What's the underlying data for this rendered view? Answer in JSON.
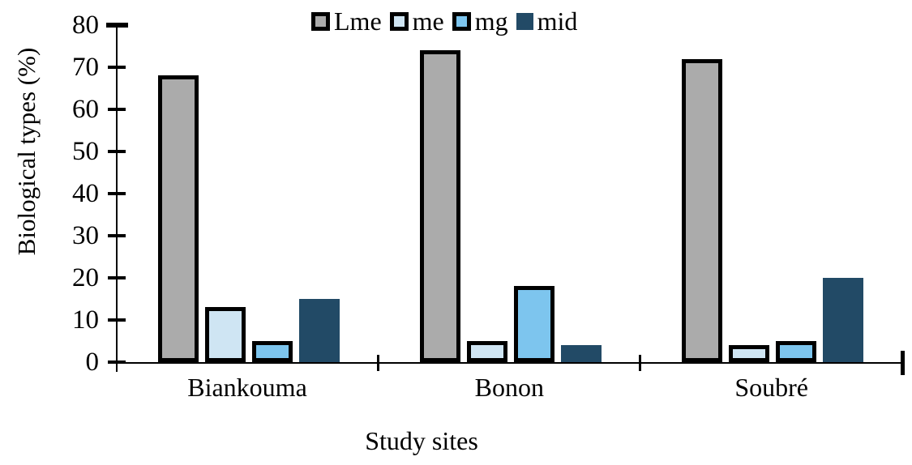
{
  "chart_data": {
    "type": "bar",
    "title": "",
    "categories": [
      "Biankouma",
      "Bonon",
      "Soubré"
    ],
    "series": [
      {
        "name": "Lme",
        "fill": "#ababab",
        "border": "#000000",
        "values": [
          68,
          74,
          72
        ]
      },
      {
        "name": "me",
        "fill": "#cfe5f3",
        "border": "#000000",
        "values": [
          13,
          5,
          4
        ]
      },
      {
        "name": "mg",
        "fill": "#7dc5ee",
        "border": "#000000",
        "values": [
          5,
          18,
          5
        ]
      },
      {
        "name": "mid",
        "fill": "#224a66",
        "border": null,
        "values": [
          15,
          4,
          20
        ]
      }
    ],
    "xlabel": "Study sites",
    "ylabel": "Biological types (%)",
    "ylim": [
      0,
      80
    ],
    "yticks": [
      0,
      10,
      20,
      30,
      40,
      50,
      60,
      70,
      80
    ],
    "legend_position": "top-center",
    "grid": false,
    "colors": {
      "axis": "#000000",
      "text": "#000000",
      "background": "#ffffff"
    }
  }
}
